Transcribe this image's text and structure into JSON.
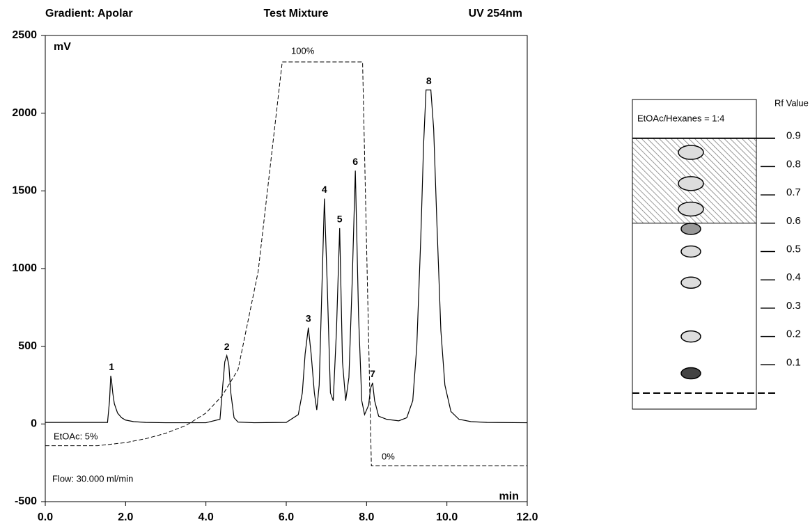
{
  "chart_data": [
    {
      "type": "line",
      "title": "Test Mixture",
      "subtitle_left": "Gradient: Apolar",
      "subtitle_right": "UV 254nm",
      "ylabel": "mV",
      "xlabel": "min",
      "annotations": [
        "100%",
        "EtOAc: 5%",
        "0%",
        "Flow: 30.000 ml/min"
      ],
      "xlim": [
        0,
        12
      ],
      "ylim": [
        -500,
        2500
      ],
      "xticks": [
        {
          "value": 0,
          "label": "0.0"
        },
        {
          "value": 2,
          "label": "2.0"
        },
        {
          "value": 4,
          "label": "4.0"
        },
        {
          "value": 6,
          "label": "6.0"
        },
        {
          "value": 8,
          "label": "8.0"
        },
        {
          "value": 10,
          "label": "10.0"
        },
        {
          "value": 12,
          "label": "12.0"
        }
      ],
      "yticks": [
        -500,
        0,
        500,
        1000,
        1500,
        2000,
        2500
      ],
      "grid": false,
      "series": [
        {
          "color": "#000000",
          "dashed": false,
          "x": [
            0,
            1.55,
            1.6,
            1.63,
            1.65,
            1.68,
            1.72,
            1.8,
            1.9,
            2.0,
            2.2,
            2.5,
            3.0,
            4.0,
            4.35,
            4.42,
            4.47,
            4.52,
            4.57,
            4.62,
            4.7,
            4.8,
            5.2,
            6.0,
            6.3,
            6.4,
            6.47,
            6.55,
            6.62,
            6.7,
            6.76,
            6.82,
            6.88,
            6.95,
            7.02,
            7.1,
            7.17,
            7.25,
            7.33,
            7.4,
            7.48,
            7.56,
            7.64,
            7.72,
            7.8,
            7.88,
            7.95,
            8.05,
            8.1,
            8.15,
            8.2,
            8.3,
            8.5,
            8.8,
            9.0,
            9.15,
            9.25,
            9.35,
            9.42,
            9.48,
            9.6,
            9.67,
            9.75,
            9.85,
            9.95,
            10.1,
            10.3,
            10.6,
            11.0,
            12.0
          ],
          "values": [
            10,
            10,
            150,
            310,
            280,
            200,
            130,
            70,
            40,
            25,
            15,
            10,
            8,
            8,
            30,
            250,
            400,
            440,
            380,
            200,
            40,
            12,
            8,
            10,
            60,
            200,
            450,
            620,
            450,
            200,
            90,
            250,
            800,
            1450,
            900,
            200,
            150,
            600,
            1260,
            400,
            150,
            300,
            900,
            1630,
            700,
            150,
            60,
            120,
            230,
            265,
            150,
            50,
            30,
            20,
            40,
            150,
            500,
            1200,
            1800,
            2150,
            2150,
            1900,
            1300,
            600,
            250,
            80,
            30,
            15,
            10,
            8
          ]
        },
        {
          "color": "#000000",
          "dashed": true,
          "x": [
            0,
            1.3,
            2.0,
            2.5,
            3.0,
            3.5,
            4.0,
            4.4,
            4.8,
            5.3,
            5.9,
            7.9,
            8.12,
            12.0
          ],
          "values": [
            -140,
            -140,
            -120,
            -95,
            -60,
            -10,
            70,
            180,
            350,
            980,
            2330,
            2330,
            -270,
            -270
          ]
        }
      ],
      "peaks": [
        {
          "label": "1",
          "x": 1.65,
          "y": 310
        },
        {
          "label": "2",
          "x": 4.52,
          "y": 440
        },
        {
          "label": "3",
          "x": 6.55,
          "y": 620
        },
        {
          "label": "4",
          "x": 6.95,
          "y": 1450
        },
        {
          "label": "5",
          "x": 7.33,
          "y": 1260
        },
        {
          "label": "6",
          "x": 7.72,
          "y": 1630
        },
        {
          "label": "7",
          "x": 8.15,
          "y": 265
        },
        {
          "label": "8",
          "x": 9.55,
          "y": 2150
        }
      ]
    },
    {
      "type": "tlc",
      "title": "EtOAc/Hexanes = 1:4",
      "ylabel": "Rf Value",
      "ylim": [
        0,
        1
      ],
      "yticks": [
        0.1,
        0.2,
        0.3,
        0.4,
        0.5,
        0.6,
        0.7,
        0.8,
        0.9
      ],
      "band": [
        0.6,
        0.9
      ],
      "values": [
        0.85,
        0.74,
        0.65,
        0.58,
        0.5,
        0.39,
        0.2,
        0.07
      ],
      "colors": [
        "#dddddd",
        "#dddddd",
        "#dddddd",
        "#999999",
        "#dddddd",
        "#dddddd",
        "#dddddd",
        "#444444"
      ]
    }
  ]
}
